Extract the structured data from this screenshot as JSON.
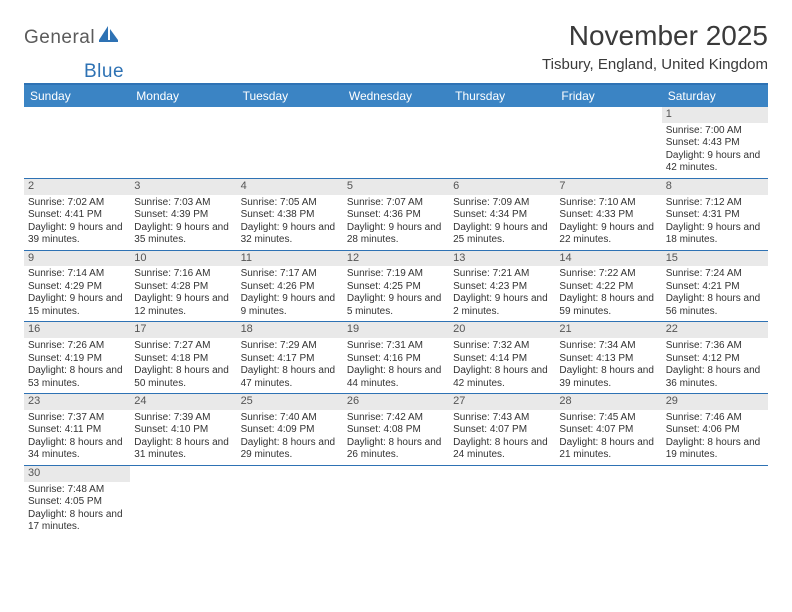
{
  "logo": {
    "text1": "General",
    "text2": "Blue"
  },
  "title": "November 2025",
  "location": "Tisbury, England, United Kingdom",
  "colors": {
    "header_bg": "#3b84c4",
    "header_border": "#2e72b4",
    "cell_border": "#2e72b4",
    "daynum_bg": "#e9e9e9"
  },
  "day_headers": [
    "Sunday",
    "Monday",
    "Tuesday",
    "Wednesday",
    "Thursday",
    "Friday",
    "Saturday"
  ],
  "weeks": [
    [
      null,
      null,
      null,
      null,
      null,
      null,
      {
        "n": "1",
        "sr": "Sunrise: 7:00 AM",
        "ss": "Sunset: 4:43 PM",
        "dl": "Daylight: 9 hours and 42 minutes."
      }
    ],
    [
      {
        "n": "2",
        "sr": "Sunrise: 7:02 AM",
        "ss": "Sunset: 4:41 PM",
        "dl": "Daylight: 9 hours and 39 minutes."
      },
      {
        "n": "3",
        "sr": "Sunrise: 7:03 AM",
        "ss": "Sunset: 4:39 PM",
        "dl": "Daylight: 9 hours and 35 minutes."
      },
      {
        "n": "4",
        "sr": "Sunrise: 7:05 AM",
        "ss": "Sunset: 4:38 PM",
        "dl": "Daylight: 9 hours and 32 minutes."
      },
      {
        "n": "5",
        "sr": "Sunrise: 7:07 AM",
        "ss": "Sunset: 4:36 PM",
        "dl": "Daylight: 9 hours and 28 minutes."
      },
      {
        "n": "6",
        "sr": "Sunrise: 7:09 AM",
        "ss": "Sunset: 4:34 PM",
        "dl": "Daylight: 9 hours and 25 minutes."
      },
      {
        "n": "7",
        "sr": "Sunrise: 7:10 AM",
        "ss": "Sunset: 4:33 PM",
        "dl": "Daylight: 9 hours and 22 minutes."
      },
      {
        "n": "8",
        "sr": "Sunrise: 7:12 AM",
        "ss": "Sunset: 4:31 PM",
        "dl": "Daylight: 9 hours and 18 minutes."
      }
    ],
    [
      {
        "n": "9",
        "sr": "Sunrise: 7:14 AM",
        "ss": "Sunset: 4:29 PM",
        "dl": "Daylight: 9 hours and 15 minutes."
      },
      {
        "n": "10",
        "sr": "Sunrise: 7:16 AM",
        "ss": "Sunset: 4:28 PM",
        "dl": "Daylight: 9 hours and 12 minutes."
      },
      {
        "n": "11",
        "sr": "Sunrise: 7:17 AM",
        "ss": "Sunset: 4:26 PM",
        "dl": "Daylight: 9 hours and 9 minutes."
      },
      {
        "n": "12",
        "sr": "Sunrise: 7:19 AM",
        "ss": "Sunset: 4:25 PM",
        "dl": "Daylight: 9 hours and 5 minutes."
      },
      {
        "n": "13",
        "sr": "Sunrise: 7:21 AM",
        "ss": "Sunset: 4:23 PM",
        "dl": "Daylight: 9 hours and 2 minutes."
      },
      {
        "n": "14",
        "sr": "Sunrise: 7:22 AM",
        "ss": "Sunset: 4:22 PM",
        "dl": "Daylight: 8 hours and 59 minutes."
      },
      {
        "n": "15",
        "sr": "Sunrise: 7:24 AM",
        "ss": "Sunset: 4:21 PM",
        "dl": "Daylight: 8 hours and 56 minutes."
      }
    ],
    [
      {
        "n": "16",
        "sr": "Sunrise: 7:26 AM",
        "ss": "Sunset: 4:19 PM",
        "dl": "Daylight: 8 hours and 53 minutes."
      },
      {
        "n": "17",
        "sr": "Sunrise: 7:27 AM",
        "ss": "Sunset: 4:18 PM",
        "dl": "Daylight: 8 hours and 50 minutes."
      },
      {
        "n": "18",
        "sr": "Sunrise: 7:29 AM",
        "ss": "Sunset: 4:17 PM",
        "dl": "Daylight: 8 hours and 47 minutes."
      },
      {
        "n": "19",
        "sr": "Sunrise: 7:31 AM",
        "ss": "Sunset: 4:16 PM",
        "dl": "Daylight: 8 hours and 44 minutes."
      },
      {
        "n": "20",
        "sr": "Sunrise: 7:32 AM",
        "ss": "Sunset: 4:14 PM",
        "dl": "Daylight: 8 hours and 42 minutes."
      },
      {
        "n": "21",
        "sr": "Sunrise: 7:34 AM",
        "ss": "Sunset: 4:13 PM",
        "dl": "Daylight: 8 hours and 39 minutes."
      },
      {
        "n": "22",
        "sr": "Sunrise: 7:36 AM",
        "ss": "Sunset: 4:12 PM",
        "dl": "Daylight: 8 hours and 36 minutes."
      }
    ],
    [
      {
        "n": "23",
        "sr": "Sunrise: 7:37 AM",
        "ss": "Sunset: 4:11 PM",
        "dl": "Daylight: 8 hours and 34 minutes."
      },
      {
        "n": "24",
        "sr": "Sunrise: 7:39 AM",
        "ss": "Sunset: 4:10 PM",
        "dl": "Daylight: 8 hours and 31 minutes."
      },
      {
        "n": "25",
        "sr": "Sunrise: 7:40 AM",
        "ss": "Sunset: 4:09 PM",
        "dl": "Daylight: 8 hours and 29 minutes."
      },
      {
        "n": "26",
        "sr": "Sunrise: 7:42 AM",
        "ss": "Sunset: 4:08 PM",
        "dl": "Daylight: 8 hours and 26 minutes."
      },
      {
        "n": "27",
        "sr": "Sunrise: 7:43 AM",
        "ss": "Sunset: 4:07 PM",
        "dl": "Daylight: 8 hours and 24 minutes."
      },
      {
        "n": "28",
        "sr": "Sunrise: 7:45 AM",
        "ss": "Sunset: 4:07 PM",
        "dl": "Daylight: 8 hours and 21 minutes."
      },
      {
        "n": "29",
        "sr": "Sunrise: 7:46 AM",
        "ss": "Sunset: 4:06 PM",
        "dl": "Daylight: 8 hours and 19 minutes."
      }
    ],
    [
      {
        "n": "30",
        "sr": "Sunrise: 7:48 AM",
        "ss": "Sunset: 4:05 PM",
        "dl": "Daylight: 8 hours and 17 minutes."
      },
      null,
      null,
      null,
      null,
      null,
      null
    ]
  ]
}
